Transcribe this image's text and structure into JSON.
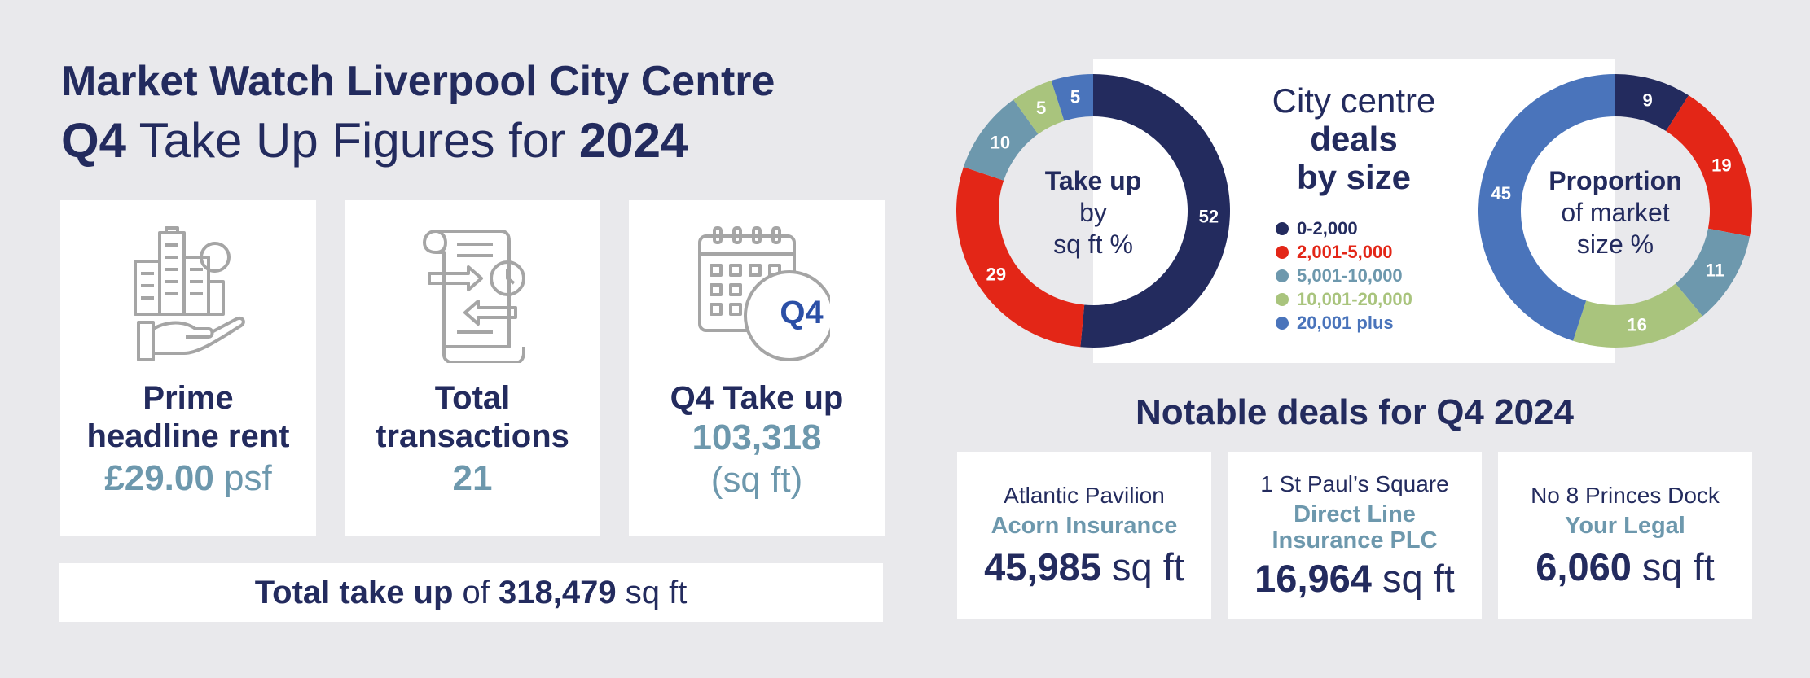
{
  "header": {
    "title_line1": "Market Watch Liverpool City Centre",
    "title_q": "Q4",
    "title_mid": " Take Up Figures for ",
    "title_year": "2024"
  },
  "kpis": [
    {
      "label_line1": "Prime",
      "label_line2": "headline rent",
      "value": "£29.00",
      "unit": " psf",
      "icon": "city-buildings-hand-icon"
    },
    {
      "label_line1": "Total",
      "label_line2": "transactions",
      "value": "21",
      "icon": "document-transactions-icon"
    },
    {
      "label_line1": "Q4 Take up",
      "value": "103,318",
      "unit": "(sq ft)",
      "icon": "calendar-q4-icon",
      "icon_text": "Q4"
    }
  ],
  "total_take_up": {
    "label": "Total take up",
    "of": " of ",
    "value": "318,479",
    "unit": " sq ft"
  },
  "charts": {
    "title_line1": "City centre",
    "title_line2": "deals",
    "title_line3": "by size",
    "legend": [
      {
        "label": "0-2,000",
        "color": "#232b5e"
      },
      {
        "label": "2,001-5,000",
        "color": "#e32617"
      },
      {
        "label": "5,001-10,000",
        "color": "#6d98ad"
      },
      {
        "label": "10,001-20,000",
        "color": "#a9c47d"
      },
      {
        "label": "20,001 plus",
        "color": "#4a74bb"
      }
    ],
    "left_center": {
      "line1": "Take up",
      "line2": "by",
      "line3": "sq ft %"
    },
    "right_center": {
      "line1": "Proportion",
      "line2": "of market",
      "line3": "size %"
    }
  },
  "chart_data": [
    {
      "type": "pie",
      "categories": [
        "0-2,000",
        "2,001-5,000",
        "5,001-10,000",
        "10,001-20,000",
        "20,001 plus"
      ],
      "values": [
        52,
        29,
        10,
        5,
        5
      ],
      "colors": [
        "#232b5e",
        "#e32617",
        "#6d98ad",
        "#a9c47d",
        "#4a74bb"
      ],
      "title": "Take up by sq ft %"
    },
    {
      "type": "pie",
      "categories": [
        "0-2,000",
        "2,001-5,000",
        "5,001-10,000",
        "10,001-20,000",
        "20,001 plus"
      ],
      "values": [
        9,
        19,
        11,
        16,
        45
      ],
      "colors": [
        "#232b5e",
        "#e32617",
        "#6d98ad",
        "#a9c47d",
        "#4a74bb"
      ],
      "title": "Proportion of market size %"
    }
  ],
  "notable": {
    "title": "Notable deals for Q4 2024",
    "deals": [
      {
        "place": "Atlantic Pavilion",
        "tenant_line1": "Acorn Insurance",
        "tenant_line2": "",
        "size": "45,985",
        "unit": " sq ft"
      },
      {
        "place": "1 St Paul’s Square",
        "tenant_line1": "Direct Line",
        "tenant_line2": "Insurance PLC",
        "size": "16,964",
        "unit": " sq ft"
      },
      {
        "place": "No 8 Princes Dock",
        "tenant_line1": "Your Legal",
        "tenant_line2": "",
        "size": "6,060",
        "unit": " sq ft"
      }
    ]
  }
}
